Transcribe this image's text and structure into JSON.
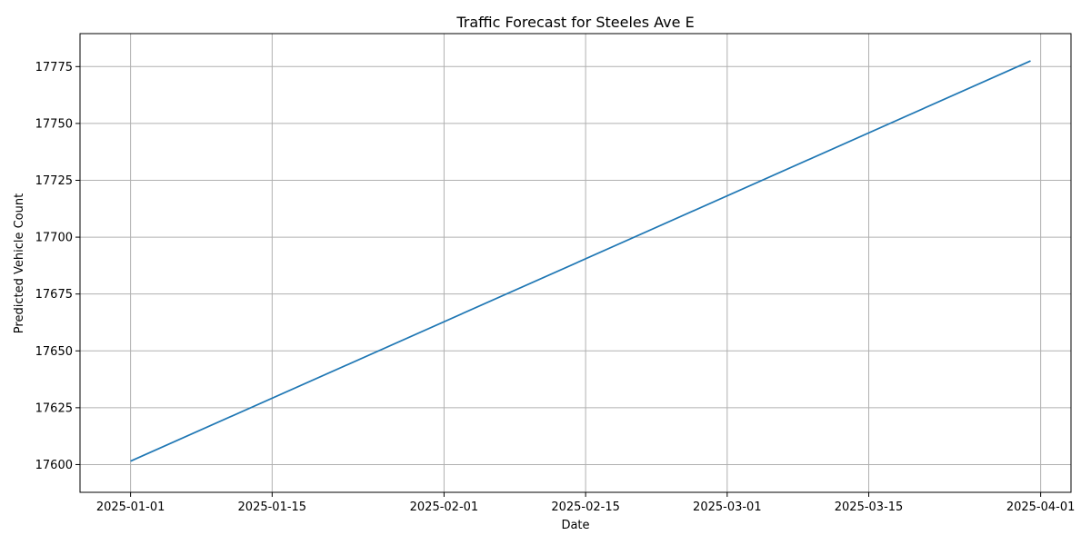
{
  "chart_data": {
    "type": "line",
    "title": "Traffic Forecast for Steeles Ave E",
    "xlabel": "Date",
    "ylabel": "Predicted Vehicle Count",
    "x_scale": "date",
    "xlim": [
      "2024-12-27",
      "2025-04-04"
    ],
    "ylim": [
      17587.8,
      17789.5
    ],
    "grid": true,
    "x_ticks": [
      "2025-01-01",
      "2025-01-15",
      "2025-02-01",
      "2025-02-15",
      "2025-03-01",
      "2025-03-15",
      "2025-04-01"
    ],
    "y_ticks": [
      17600,
      17625,
      17650,
      17675,
      17700,
      17725,
      17750,
      17775
    ],
    "series": [
      {
        "color": "#1f77b4",
        "x": [
          "2025-01-01",
          "2025-03-31"
        ],
        "y": [
          17601.5,
          17777.5
        ]
      }
    ]
  }
}
